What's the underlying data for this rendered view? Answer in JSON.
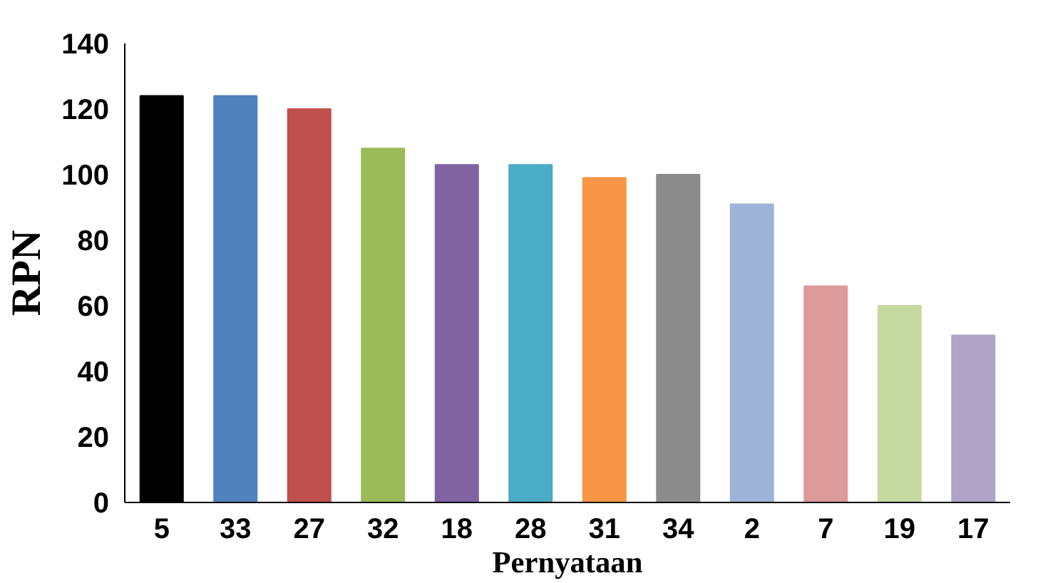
{
  "chart_data": {
    "type": "bar",
    "xlabel": "Pernyataan",
    "ylabel": "RPN",
    "categories": [
      "5",
      "33",
      "27",
      "32",
      "18",
      "28",
      "31",
      "34",
      "2",
      "7",
      "19",
      "17"
    ],
    "values": [
      124,
      124,
      120,
      108,
      103,
      103,
      99,
      100,
      91,
      66,
      60,
      51
    ],
    "colors": [
      "#000000",
      "#4f81bd",
      "#c0504d",
      "#9bbb59",
      "#8064a2",
      "#4bacc6",
      "#f79646",
      "#8c8c8c",
      "#9fb3d8",
      "#dc9a9a",
      "#c6d9a0",
      "#afa3c8"
    ],
    "ylim": [
      0,
      140
    ],
    "yticks": [
      0,
      20,
      40,
      60,
      80,
      100,
      120,
      140
    ],
    "grid": false
  }
}
